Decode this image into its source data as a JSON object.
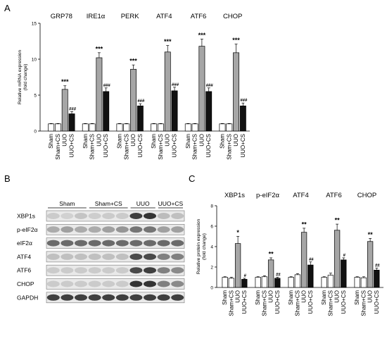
{
  "panels": {
    "a_letter": "A",
    "b_letter": "B",
    "c_letter": "C"
  },
  "chart_data": [
    {
      "type": "bar",
      "panel": "A",
      "ylabel": "Relative mRNA expression\n(fold change)",
      "ylim": [
        0,
        15
      ],
      "yticks": [
        0,
        5,
        10,
        15
      ],
      "groups": [
        "GRP78",
        "IRE1α",
        "PERK",
        "ATF4",
        "ATF6",
        "CHOP"
      ],
      "categories": [
        "Sham",
        "Sham+CS",
        "UUO",
        "UUO+CS"
      ],
      "colors": [
        "#ffffff",
        "#ffffff",
        "#a6a6a6",
        "#111111"
      ],
      "values": [
        [
          1,
          1,
          5.8,
          2.4
        ],
        [
          1,
          1,
          10.2,
          5.5
        ],
        [
          1,
          1,
          8.6,
          3.5
        ],
        [
          1,
          1,
          11.0,
          5.6
        ],
        [
          1,
          1,
          11.8,
          5.5
        ],
        [
          1,
          1,
          10.9,
          3.5
        ]
      ],
      "errors": [
        [
          0.05,
          0.05,
          0.5,
          0.3
        ],
        [
          0.05,
          0.05,
          0.7,
          0.5
        ],
        [
          0.05,
          0.05,
          0.6,
          0.3
        ],
        [
          0.05,
          0.05,
          0.9,
          0.5
        ],
        [
          0.05,
          0.05,
          1.0,
          0.5
        ],
        [
          0.05,
          0.05,
          1.2,
          0.4
        ]
      ],
      "significance": [
        [
          "",
          "",
          "***",
          "###"
        ],
        [
          "",
          "",
          "***",
          "###"
        ],
        [
          "",
          "",
          "***",
          "###"
        ],
        [
          "",
          "",
          "***",
          "###"
        ],
        [
          "",
          "",
          "***",
          "###"
        ],
        [
          "",
          "",
          "***",
          "###"
        ]
      ]
    },
    {
      "type": "bar",
      "panel": "C",
      "ylabel": "Relative protein expression\n(fold change)",
      "ylim": [
        0,
        8
      ],
      "yticks": [
        0,
        2,
        4,
        6,
        8
      ],
      "groups": [
        "XBP1s",
        "p-eIF2α",
        "ATF4",
        "ATF6",
        "CHOP"
      ],
      "categories": [
        "Sham",
        "Sham+CS",
        "UUO",
        "UUO+CS"
      ],
      "colors": [
        "#ffffff",
        "#ffffff",
        "#a6a6a6",
        "#111111"
      ],
      "values": [
        [
          1,
          0.9,
          4.3,
          0.8
        ],
        [
          1,
          1.05,
          2.7,
          0.9
        ],
        [
          1,
          1.25,
          5.4,
          2.2
        ],
        [
          1,
          1.2,
          5.6,
          2.7
        ],
        [
          1,
          0.95,
          4.5,
          1.7
        ]
      ],
      "errors": [
        [
          0.05,
          0.1,
          0.7,
          0.1
        ],
        [
          0.05,
          0.1,
          0.2,
          0.1
        ],
        [
          0.05,
          0.1,
          0.4,
          0.3
        ],
        [
          0.05,
          0.2,
          0.6,
          0.2
        ],
        [
          0.05,
          0.1,
          0.3,
          0.2
        ]
      ],
      "significance": [
        [
          "",
          "",
          "*",
          "#"
        ],
        [
          "",
          "",
          "**",
          "##"
        ],
        [
          "",
          "",
          "**",
          "##"
        ],
        [
          "",
          "",
          "**",
          "#"
        ],
        [
          "",
          "",
          "**",
          "##"
        ]
      ]
    }
  ],
  "blot": {
    "groups": [
      "Sham",
      "Sham+CS",
      "UUO",
      "UUO+CS"
    ],
    "proteins": [
      "XBP1s",
      "p-eIF2α",
      "eIF2α",
      "ATF4",
      "ATF6",
      "CHOP",
      "GAPDH"
    ],
    "intensity": [
      [
        0.15,
        0.12,
        0.18,
        0.14,
        0.15,
        0.15,
        0.8,
        0.85,
        0.22,
        0.2
      ],
      [
        0.3,
        0.35,
        0.3,
        0.3,
        0.35,
        0.4,
        0.55,
        0.55,
        0.35,
        0.35
      ],
      [
        0.6,
        0.6,
        0.6,
        0.6,
        0.6,
        0.6,
        0.6,
        0.6,
        0.6,
        0.6
      ],
      [
        0.2,
        0.2,
        0.2,
        0.2,
        0.2,
        0.2,
        0.75,
        0.75,
        0.5,
        0.5
      ],
      [
        0.15,
        0.15,
        0.15,
        0.15,
        0.15,
        0.15,
        0.75,
        0.8,
        0.5,
        0.45
      ],
      [
        0.15,
        0.15,
        0.15,
        0.15,
        0.15,
        0.15,
        0.85,
        0.85,
        0.5,
        0.45
      ],
      [
        0.8,
        0.8,
        0.8,
        0.8,
        0.8,
        0.8,
        0.8,
        0.8,
        0.8,
        0.8
      ]
    ]
  }
}
